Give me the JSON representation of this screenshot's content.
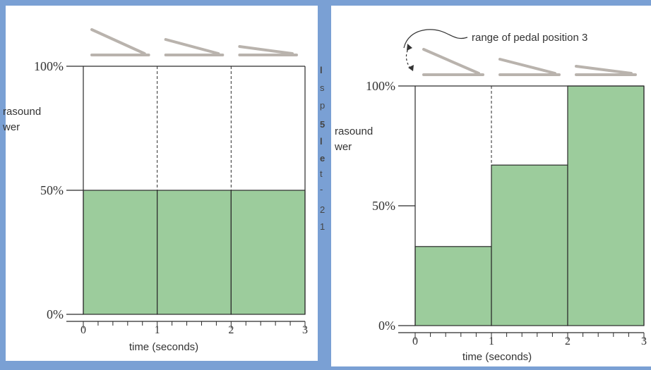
{
  "colors": {
    "frame": "#7aa0d4",
    "panel": "#ffffff",
    "bar_fill": "#9ccc9c",
    "bar_stroke": "#2a2a2a",
    "pedal": "#b9b3ad"
  },
  "chart_data": [
    {
      "type": "bar",
      "title": "",
      "xlabel": "time (seconds)",
      "ylabel": "rasound\nwer",
      "x_ticks": [
        "0",
        "1",
        "2",
        "3"
      ],
      "y_ticks": [
        "0%",
        "50%",
        "100%"
      ],
      "ylim": [
        0,
        100
      ],
      "xlim": [
        0,
        3
      ],
      "intervals": [
        [
          0,
          1
        ],
        [
          1,
          2
        ],
        [
          2,
          3
        ]
      ],
      "values": [
        50,
        50,
        50
      ],
      "pedal_positions": 3,
      "grid": "dashed separators at t=1 and t=2"
    },
    {
      "type": "bar",
      "title": "",
      "annotation": "range of pedal position 3",
      "xlabel": "time (seconds)",
      "ylabel": "rasound\nwer",
      "x_ticks": [
        "0",
        "1",
        "2",
        "3"
      ],
      "y_ticks": [
        "0%",
        "50%",
        "100%"
      ],
      "ylim": [
        0,
        100
      ],
      "xlim": [
        0,
        3
      ],
      "intervals": [
        [
          0,
          1
        ],
        [
          1,
          2
        ],
        [
          2,
          3
        ]
      ],
      "values": [
        33,
        67,
        100
      ],
      "pedal_positions": 3,
      "grid": "dashed separator at t=1"
    }
  ],
  "cropped_margin_text": [
    "l",
    "s",
    "p",
    "5",
    "l",
    "e",
    "t",
    "-",
    "2",
    "1"
  ]
}
